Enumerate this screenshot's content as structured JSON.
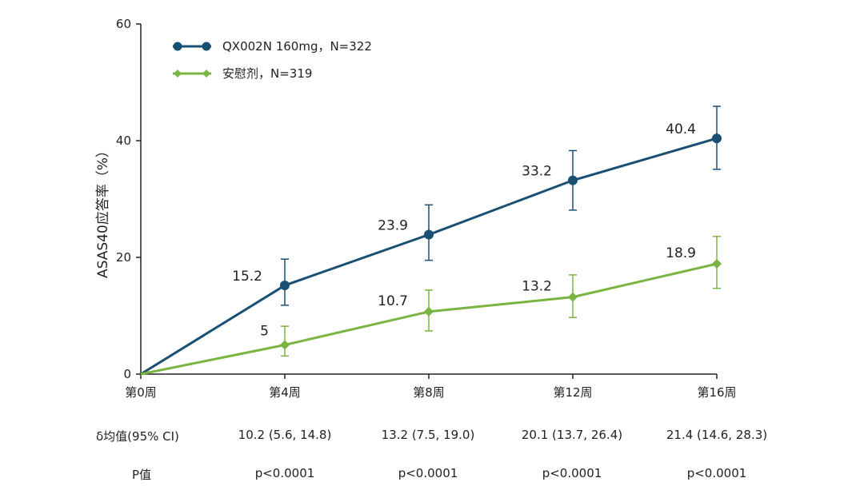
{
  "chart_data": {
    "type": "line",
    "title": "",
    "xlabel": "",
    "ylabel": "ASAS40应答率（%）",
    "ylim": [
      0,
      60
    ],
    "yticks": [
      0,
      20,
      40,
      60
    ],
    "categories": [
      "第0周",
      "第4周",
      "第8周",
      "第12周",
      "第16周"
    ],
    "x": [
      0,
      4,
      8,
      12,
      16
    ],
    "legend_position": "top-left",
    "series": [
      {
        "name": "QX002N 160mg，N=322",
        "color": "#1a4f74",
        "marker": "circle",
        "values": [
          0,
          15.2,
          23.9,
          33.2,
          40.4
        ],
        "ci_low": [
          null,
          11.8,
          19.5,
          28.1,
          35.1
        ],
        "ci_high": [
          null,
          19.7,
          29.0,
          38.3,
          45.9
        ],
        "labels": [
          "",
          "15.2",
          "23.9",
          "33.2",
          "40.4"
        ]
      },
      {
        "name": "安慰剂，N=319",
        "color": "#7ab441",
        "marker": "diamond",
        "values": [
          0,
          5,
          10.7,
          13.2,
          18.9
        ],
        "ci_low": [
          null,
          3.1,
          7.4,
          9.7,
          14.7
        ],
        "ci_high": [
          null,
          8.2,
          14.4,
          17.0,
          23.6
        ],
        "labels": [
          "",
          "5",
          "10.7",
          "13.2",
          "18.9"
        ]
      }
    ]
  },
  "table": {
    "rows": [
      {
        "label": "δ均值(95% CI)",
        "cells": [
          "10.2 (5.6, 14.8)",
          "13.2 (7.5, 19.0)",
          "20.1 (13.7, 26.4)",
          "21.4 (14.6, 28.3)"
        ]
      },
      {
        "label": "P值",
        "cells": [
          "p<0.0001",
          "p<0.0001",
          "p<0.0001",
          "p<0.0001"
        ]
      }
    ]
  }
}
